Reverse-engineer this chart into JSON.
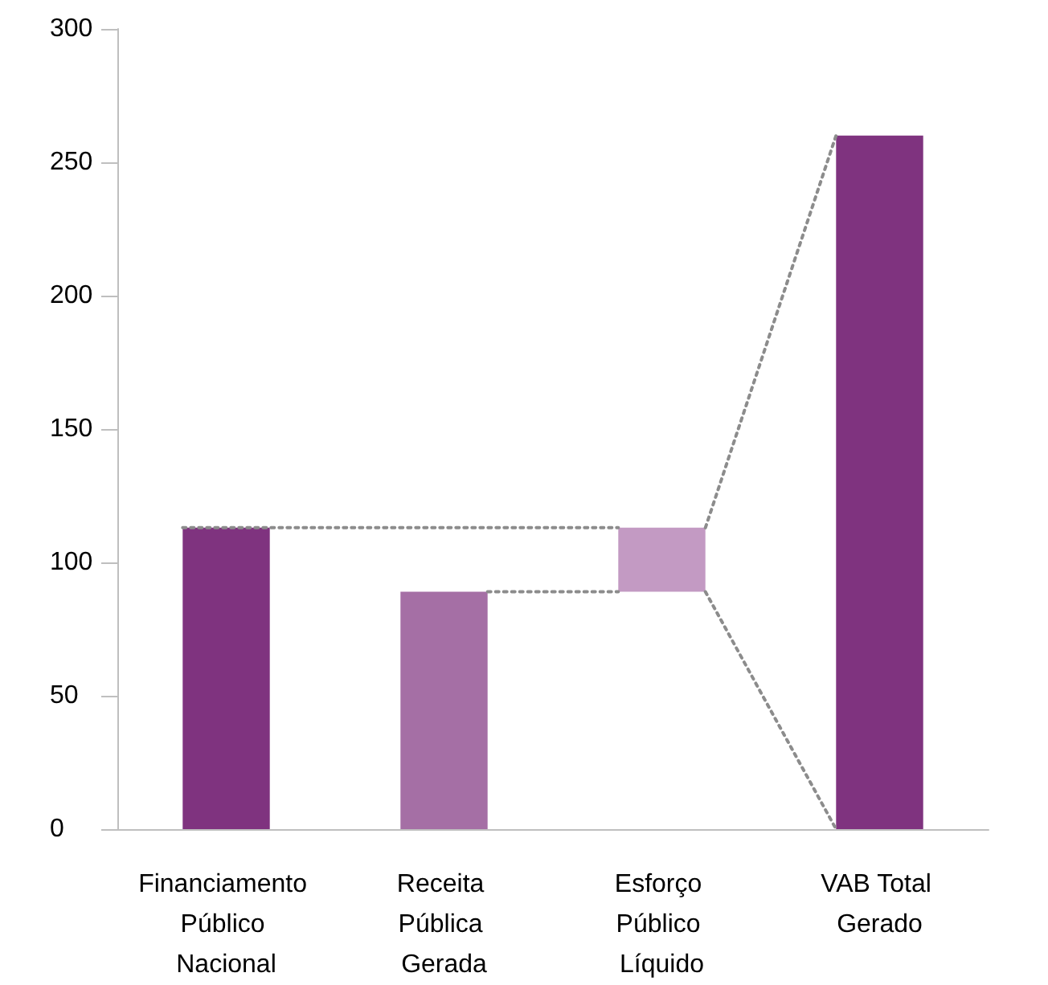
{
  "chart_data": {
    "type": "bar",
    "categories": [
      "Financiamento Público Nacional",
      "Receita Pública Gerada",
      "Esforço Público Líquido",
      "VAB Total Gerado"
    ],
    "values": [
      113,
      89,
      24,
      260
    ],
    "base": [
      0,
      0,
      89,
      0
    ],
    "colors": [
      "#7f337f",
      "#a56fa5",
      "#c39ac3",
      "#7f337f"
    ],
    "ylim": [
      0,
      300
    ],
    "yticks": [
      0,
      50,
      100,
      150,
      200,
      250,
      300
    ],
    "grid": false
  }
}
